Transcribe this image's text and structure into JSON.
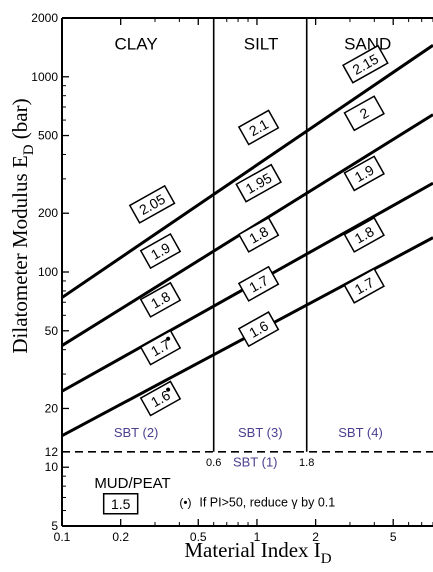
{
  "chart_data": {
    "type": "line",
    "x_scale": "log",
    "y_scale": "log",
    "xlim": [
      0.1,
      8
    ],
    "ylim": [
      5,
      2000
    ],
    "x_ticks": [
      {
        "value": 0.1,
        "label": "0.1"
      },
      {
        "value": 0.2,
        "label": "0.2"
      },
      {
        "value": 0.5,
        "label": "0.5"
      },
      {
        "value": 1,
        "label": "1"
      },
      {
        "value": 2,
        "label": "2"
      },
      {
        "value": 5,
        "label": "5"
      }
    ],
    "x_minor_ticks": [
      0.3,
      0.4,
      0.6,
      0.7,
      0.8,
      0.9,
      3,
      4,
      6,
      7,
      8
    ],
    "y_ticks": [
      {
        "value": 5,
        "label": "5"
      },
      {
        "value": 10,
        "label": "10"
      },
      {
        "value": 12,
        "label": "12"
      },
      {
        "value": 20,
        "label": "20"
      },
      {
        "value": 50,
        "label": "50"
      },
      {
        "value": 100,
        "label": "100"
      },
      {
        "value": 200,
        "label": "200"
      },
      {
        "value": 500,
        "label": "500"
      },
      {
        "value": 1000,
        "label": "1000"
      },
      {
        "value": 2000,
        "label": "2000"
      }
    ],
    "y_minor_ticks": [
      6,
      7,
      8,
      9,
      30,
      40,
      60,
      70,
      80,
      90,
      300,
      400,
      600,
      700,
      800,
      900
    ],
    "x_axis_label": {
      "main": "Material Index",
      "symbol": "I",
      "subscript": "D"
    },
    "y_axis_label": {
      "main": "Dilatometer Modulus",
      "symbol": "E",
      "subscript": "D",
      "unit": "(bar)"
    },
    "zones": [
      {
        "label": "CLAY",
        "x": 0.24,
        "y": 1500
      },
      {
        "label": "SILT",
        "x": 1.05,
        "y": 1500
      },
      {
        "label": "SAND",
        "x": 3.7,
        "y": 1500
      }
    ],
    "vertical_boundaries": [
      {
        "x": 0.6,
        "label": "0.6"
      },
      {
        "x": 1.8,
        "label": "1.8"
      }
    ],
    "horizontal_boundary": {
      "y": 12
    },
    "sbt_labels": [
      {
        "label": "SBT (2)",
        "x": 0.24,
        "y": 15
      },
      {
        "label": "SBT (3)",
        "x": 1.04,
        "y": 15
      },
      {
        "label": "SBT (4)",
        "x": 3.4,
        "y": 15
      },
      {
        "label": "SBT (1)",
        "x": 0.98,
        "y": 10.6
      }
    ],
    "region_labels": [
      {
        "label": "MUD/PEAT",
        "x": 0.23,
        "y": 8.4
      }
    ],
    "series": [
      {
        "points": [
          [
            0.1,
            14.5
          ],
          [
            8,
            150
          ]
        ]
      },
      {
        "points": [
          [
            0.1,
            24.5
          ],
          [
            8,
            285
          ]
        ]
      },
      {
        "points": [
          [
            0.1,
            42
          ],
          [
            8,
            640
          ]
        ]
      },
      {
        "points": [
          [
            0.1,
            74
          ],
          [
            8,
            1450
          ]
        ]
      }
    ],
    "line_labels": [
      {
        "text": "1.6",
        "x": 0.32,
        "y": 22.5,
        "dot": true
      },
      {
        "text": "1.7",
        "x": 0.32,
        "y": 41,
        "dot": true
      },
      {
        "text": "1.8",
        "x": 0.32,
        "y": 72,
        "dot": false
      },
      {
        "text": "1.9",
        "x": 0.32,
        "y": 128,
        "dot": false
      },
      {
        "text": "2.05",
        "x": 0.29,
        "y": 222,
        "dot": false
      },
      {
        "text": "1.6",
        "x": 1.02,
        "y": 51,
        "dot": false
      },
      {
        "text": "1.7",
        "x": 1.02,
        "y": 87,
        "dot": false
      },
      {
        "text": "1.8",
        "x": 1.02,
        "y": 155,
        "dot": false
      },
      {
        "text": "1.95",
        "x": 1.02,
        "y": 285,
        "dot": false
      },
      {
        "text": "2.1",
        "x": 1.02,
        "y": 550,
        "dot": false
      },
      {
        "text": "1.7",
        "x": 3.55,
        "y": 85,
        "dot": false
      },
      {
        "text": "1.8",
        "x": 3.55,
        "y": 155,
        "dot": false
      },
      {
        "text": "1.9",
        "x": 3.55,
        "y": 320,
        "dot": false
      },
      {
        "text": "2",
        "x": 3.55,
        "y": 650,
        "dot": false
      },
      {
        "text": "2.15",
        "x": 3.6,
        "y": 1160,
        "dot": false
      },
      {
        "text": "1.5",
        "x": 0.2,
        "y": 6.5,
        "dot": false
      }
    ],
    "note": {
      "text": "If PI>50, reduce γ by 0.1",
      "x": 0.4,
      "y": 6.6
    }
  }
}
